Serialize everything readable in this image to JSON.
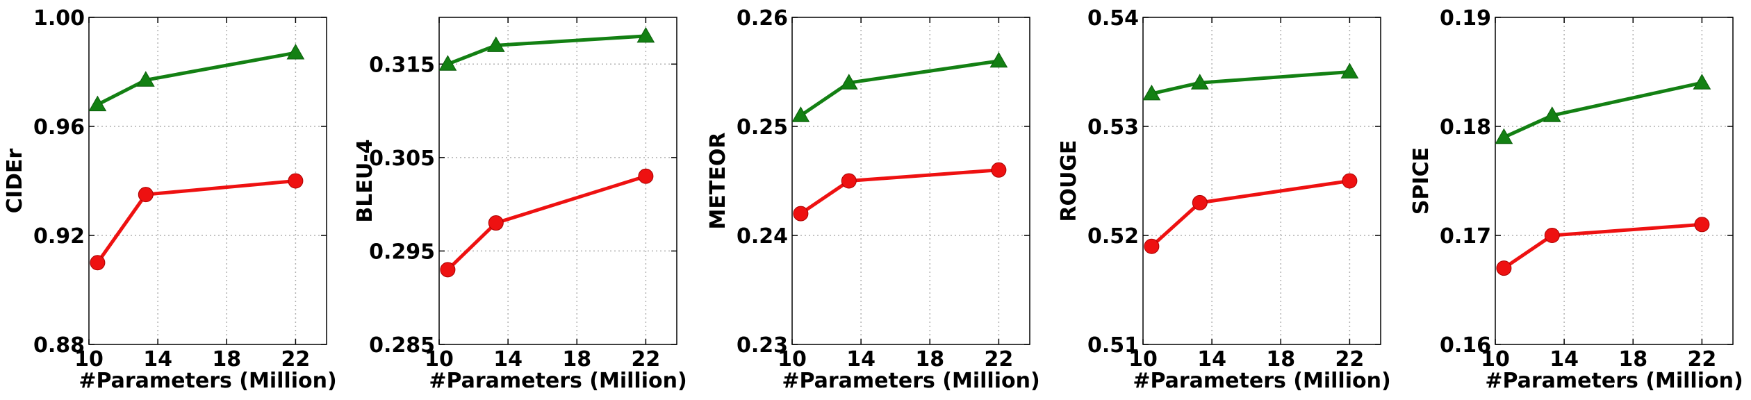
{
  "chart_data": [
    {
      "type": "line",
      "xlabel": "#Parameters (Million)",
      "ylabel": "CIDEr",
      "xlim": [
        10,
        23.8
      ],
      "ylim": [
        0.88,
        1.0
      ],
      "xticks": [
        10,
        14,
        18,
        22
      ],
      "xtick_labels": [
        "10",
        "14",
        "18",
        "22"
      ],
      "yticks": [
        0.88,
        0.92,
        0.96,
        1.0
      ],
      "ytick_labels": [
        "0.88",
        "0.92",
        "0.96",
        "1.00"
      ],
      "grid": true,
      "x": [
        10.5,
        13.3,
        22.0
      ],
      "series": [
        {
          "values": [
            0.968,
            0.977,
            0.987
          ],
          "color": "#138013",
          "marker": "triangle"
        },
        {
          "values": [
            0.91,
            0.935,
            0.94
          ],
          "color": "#ee1111",
          "marker": "circle"
        }
      ]
    },
    {
      "type": "line",
      "xlabel": "#Parameters (Million)",
      "ylabel": "BLEU-4",
      "xlim": [
        10,
        23.8
      ],
      "ylim": [
        0.285,
        0.32
      ],
      "xticks": [
        10,
        14,
        18,
        22
      ],
      "xtick_labels": [
        "10",
        "14",
        "18",
        "22"
      ],
      "yticks": [
        0.285,
        0.295,
        0.305,
        0.315
      ],
      "ytick_labels": [
        "0.285",
        "0.295",
        "0.305",
        "0.315"
      ],
      "grid": true,
      "x": [
        10.5,
        13.3,
        22.0
      ],
      "series": [
        {
          "values": [
            0.315,
            0.317,
            0.318
          ],
          "color": "#138013",
          "marker": "triangle"
        },
        {
          "values": [
            0.293,
            0.298,
            0.303
          ],
          "color": "#ee1111",
          "marker": "circle"
        }
      ]
    },
    {
      "type": "line",
      "xlabel": "#Parameters (Million)",
      "ylabel": "METEOR",
      "xlim": [
        10,
        23.8
      ],
      "ylim": [
        0.23,
        0.26
      ],
      "xticks": [
        10,
        14,
        18,
        22
      ],
      "xtick_labels": [
        "10",
        "14",
        "18",
        "22"
      ],
      "yticks": [
        0.23,
        0.24,
        0.25,
        0.26
      ],
      "ytick_labels": [
        "0.23",
        "0.24",
        "0.25",
        "0.26"
      ],
      "grid": true,
      "x": [
        10.5,
        13.3,
        22.0
      ],
      "series": [
        {
          "values": [
            0.251,
            0.254,
            0.256
          ],
          "color": "#138013",
          "marker": "triangle"
        },
        {
          "values": [
            0.242,
            0.245,
            0.246
          ],
          "color": "#ee1111",
          "marker": "circle"
        }
      ]
    },
    {
      "type": "line",
      "xlabel": "#Parameters (Million)",
      "ylabel": "ROUGE",
      "xlim": [
        10,
        23.8
      ],
      "ylim": [
        0.51,
        0.54
      ],
      "xticks": [
        10,
        14,
        18,
        22
      ],
      "xtick_labels": [
        "10",
        "14",
        "18",
        "22"
      ],
      "yticks": [
        0.51,
        0.52,
        0.53,
        0.54
      ],
      "ytick_labels": [
        "0.51",
        "0.52",
        "0.53",
        "0.54"
      ],
      "grid": true,
      "x": [
        10.5,
        13.3,
        22.0
      ],
      "series": [
        {
          "values": [
            0.533,
            0.534,
            0.535
          ],
          "color": "#138013",
          "marker": "triangle"
        },
        {
          "values": [
            0.519,
            0.523,
            0.525
          ],
          "color": "#ee1111",
          "marker": "circle"
        }
      ]
    },
    {
      "type": "line",
      "xlabel": "#Parameters (Million)",
      "ylabel": "SPICE",
      "xlim": [
        10,
        23.8
      ],
      "ylim": [
        0.16,
        0.19
      ],
      "xticks": [
        10,
        14,
        18,
        22
      ],
      "xtick_labels": [
        "10",
        "14",
        "18",
        "22"
      ],
      "yticks": [
        0.16,
        0.17,
        0.18,
        0.19
      ],
      "ytick_labels": [
        "0.16",
        "0.17",
        "0.18",
        "0.19"
      ],
      "grid": true,
      "x": [
        10.5,
        13.3,
        22.0
      ],
      "series": [
        {
          "values": [
            0.179,
            0.181,
            0.184
          ],
          "color": "#138013",
          "marker": "triangle"
        },
        {
          "values": [
            0.167,
            0.17,
            0.171
          ],
          "color": "#ee1111",
          "marker": "circle"
        }
      ]
    }
  ]
}
